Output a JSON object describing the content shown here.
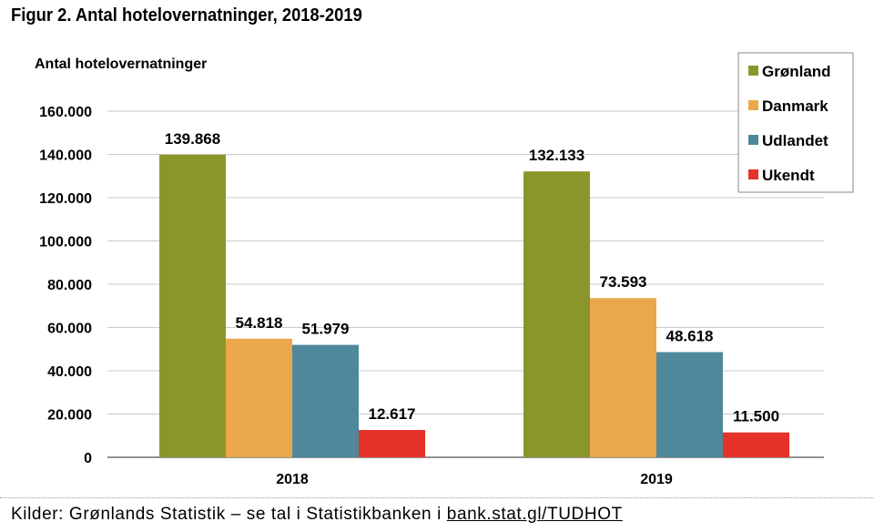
{
  "figure_title": "Figur 2. Antal hotelovernatninger, 2018-2019",
  "source": {
    "prefix": "Kilder: Grønlands Statistik – se tal i Statistikbanken i ",
    "link_text": "bank.stat.gl/TUDHOT"
  },
  "chart_data": {
    "type": "bar",
    "title": "",
    "ylabel": "Antal hotelovernatninger",
    "xlabel": "",
    "categories": [
      "2018",
      "2019"
    ],
    "ylim": [
      0,
      160000
    ],
    "yticks": [
      0,
      20000,
      40000,
      60000,
      80000,
      100000,
      120000,
      140000,
      160000
    ],
    "ytick_labels": [
      "0",
      "20.000",
      "40.000",
      "60.000",
      "80.000",
      "100.000",
      "120.000",
      "140.000",
      "160.000"
    ],
    "grid": true,
    "legend_position": "top-right",
    "series": [
      {
        "name": "Grønland",
        "color": "#8b962a",
        "values": [
          139868,
          132133
        ],
        "labels": [
          "139.868",
          "132.133"
        ]
      },
      {
        "name": "Danmark",
        "color": "#eaa84a",
        "values": [
          54818,
          73593
        ],
        "labels": [
          "54.818",
          "73.593"
        ]
      },
      {
        "name": "Udlandet",
        "color": "#4f889b",
        "values": [
          51979,
          48618
        ],
        "labels": [
          "51.979",
          "48.618"
        ]
      },
      {
        "name": "Ukendt",
        "color": "#e5322a",
        "values": [
          12617,
          11500
        ],
        "labels": [
          "12.617",
          "11.500"
        ]
      }
    ]
  }
}
